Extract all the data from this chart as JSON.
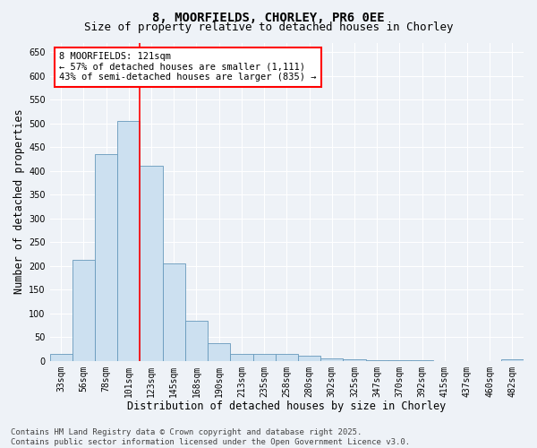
{
  "title_line1": "8, MOORFIELDS, CHORLEY, PR6 0EE",
  "title_line2": "Size of property relative to detached houses in Chorley",
  "xlabel": "Distribution of detached houses by size in Chorley",
  "ylabel": "Number of detached properties",
  "bar_color": "#cce0f0",
  "bar_edge_color": "#6699bb",
  "categories": [
    "33sqm",
    "56sqm",
    "78sqm",
    "101sqm",
    "123sqm",
    "145sqm",
    "168sqm",
    "190sqm",
    "213sqm",
    "235sqm",
    "258sqm",
    "280sqm",
    "302sqm",
    "325sqm",
    "347sqm",
    "370sqm",
    "392sqm",
    "415sqm",
    "437sqm",
    "460sqm",
    "482sqm"
  ],
  "values": [
    15,
    213,
    435,
    505,
    410,
    205,
    85,
    37,
    15,
    14,
    14,
    10,
    5,
    3,
    2,
    1,
    1,
    0,
    0,
    0,
    3
  ],
  "annotation_text": "8 MOORFIELDS: 121sqm\n← 57% of detached houses are smaller (1,111)\n43% of semi-detached houses are larger (835) →",
  "annotation_box_color": "white",
  "annotation_box_edge_color": "red",
  "vline_color": "red",
  "vline_x_index": 3.5,
  "ylim": [
    0,
    670
  ],
  "yticks": [
    0,
    50,
    100,
    150,
    200,
    250,
    300,
    350,
    400,
    450,
    500,
    550,
    600,
    650
  ],
  "footer_line1": "Contains HM Land Registry data © Crown copyright and database right 2025.",
  "footer_line2": "Contains public sector information licensed under the Open Government Licence v3.0.",
  "background_color": "#eef2f7",
  "grid_color": "white",
  "title_fontsize": 10,
  "subtitle_fontsize": 9,
  "axis_label_fontsize": 8.5,
  "tick_fontsize": 7,
  "footer_fontsize": 6.5,
  "annotation_fontsize": 7.5
}
